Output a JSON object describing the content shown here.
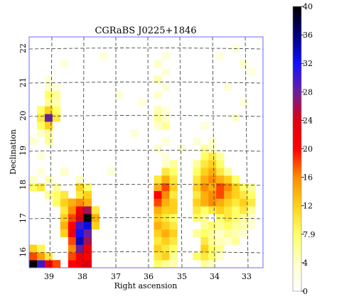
{
  "chart_data": {
    "type": "heatmap",
    "title": "CGRaBS J0225+1846",
    "xlabel": "Right ascension",
    "ylabel": "Declination",
    "x_ticks": [
      "39",
      "38",
      "37",
      "36",
      "35",
      "34",
      "33"
    ],
    "y_ticks": [
      "16",
      "17",
      "18",
      "19",
      "20",
      "21",
      "22"
    ],
    "x_axis_reversed": true,
    "grid": true,
    "grid_style": "dashed",
    "colorbar": {
      "position": "right",
      "ticks": [
        "40",
        "36",
        "32",
        "28",
        "24",
        "20",
        "16",
        "12",
        "7.9",
        "4",
        "0"
      ],
      "range": [
        0,
        40
      ],
      "scale": "nonlinear (white → yellow → orange → red → blue → black)"
    },
    "grid_size": [
      30,
      30
    ],
    "cell_values": [
      {
        "col": 0,
        "row": 0,
        "v": 40
      },
      {
        "col": 1,
        "row": 0,
        "v": 30
      },
      {
        "col": 2,
        "row": 0,
        "v": 22
      },
      {
        "col": 3,
        "row": 0,
        "v": 18
      },
      {
        "col": 0,
        "row": 1,
        "v": 18
      },
      {
        "col": 1,
        "row": 1,
        "v": 15
      },
      {
        "col": 2,
        "row": 1,
        "v": 10
      },
      {
        "col": 0,
        "row": 2,
        "v": 12
      },
      {
        "col": 1,
        "row": 2,
        "v": 9
      },
      {
        "col": 5,
        "row": 0,
        "v": 20
      },
      {
        "col": 6,
        "row": 0,
        "v": 22
      },
      {
        "col": 7,
        "row": 0,
        "v": 24
      },
      {
        "col": 5,
        "row": 1,
        "v": 18
      },
      {
        "col": 6,
        "row": 1,
        "v": 22
      },
      {
        "col": 7,
        "row": 1,
        "v": 20
      },
      {
        "col": 5,
        "row": 2,
        "v": 16
      },
      {
        "col": 6,
        "row": 2,
        "v": 28
      },
      {
        "col": 7,
        "row": 2,
        "v": 22
      },
      {
        "col": 5,
        "row": 3,
        "v": 18
      },
      {
        "col": 6,
        "row": 3,
        "v": 34
      },
      {
        "col": 7,
        "row": 3,
        "v": 26
      },
      {
        "col": 4,
        "row": 4,
        "v": 12
      },
      {
        "col": 5,
        "row": 4,
        "v": 22
      },
      {
        "col": 6,
        "row": 4,
        "v": 32
      },
      {
        "col": 7,
        "row": 4,
        "v": 28
      },
      {
        "col": 4,
        "row": 5,
        "v": 14
      },
      {
        "col": 5,
        "row": 5,
        "v": 20
      },
      {
        "col": 6,
        "row": 5,
        "v": 30
      },
      {
        "col": 7,
        "row": 5,
        "v": 33
      },
      {
        "col": 8,
        "row": 5,
        "v": 12
      },
      {
        "col": 4,
        "row": 6,
        "v": 12
      },
      {
        "col": 5,
        "row": 6,
        "v": 18
      },
      {
        "col": 6,
        "row": 6,
        "v": 24
      },
      {
        "col": 7,
        "row": 6,
        "v": 40
      },
      {
        "col": 8,
        "row": 6,
        "v": 14
      },
      {
        "col": 4,
        "row": 7,
        "v": 10
      },
      {
        "col": 5,
        "row": 7,
        "v": 16
      },
      {
        "col": 6,
        "row": 7,
        "v": 22
      },
      {
        "col": 7,
        "row": 7,
        "v": 26
      },
      {
        "col": 8,
        "row": 7,
        "v": 10
      },
      {
        "col": 3,
        "row": 8,
        "v": 8
      },
      {
        "col": 4,
        "row": 8,
        "v": 12
      },
      {
        "col": 5,
        "row": 8,
        "v": 14
      },
      {
        "col": 6,
        "row": 8,
        "v": 16
      },
      {
        "col": 7,
        "row": 8,
        "v": 14
      },
      {
        "col": 2,
        "row": 9,
        "v": 6
      },
      {
        "col": 3,
        "row": 9,
        "v": 8
      },
      {
        "col": 4,
        "row": 9,
        "v": 10
      },
      {
        "col": 6,
        "row": 9,
        "v": 10
      },
      {
        "col": 7,
        "row": 9,
        "v": 12
      },
      {
        "col": 0,
        "row": 10,
        "v": 8
      },
      {
        "col": 1,
        "row": 10,
        "v": 10
      },
      {
        "col": 3,
        "row": 10,
        "v": 6
      },
      {
        "col": 6,
        "row": 10,
        "v": 12
      },
      {
        "col": 7,
        "row": 10,
        "v": 8
      },
      {
        "col": 0,
        "row": 11,
        "v": 4
      },
      {
        "col": 2,
        "row": 11,
        "v": 5
      },
      {
        "col": 6,
        "row": 11,
        "v": 4
      },
      {
        "col": 1,
        "row": 12,
        "v": 3
      },
      {
        "col": 4,
        "row": 12,
        "v": 4
      },
      {
        "col": 1,
        "row": 14,
        "v": 3
      },
      {
        "col": 0,
        "row": 16,
        "v": 4
      },
      {
        "col": 2,
        "row": 16,
        "v": 6
      },
      {
        "col": 1,
        "row": 17,
        "v": 4
      },
      {
        "col": 2,
        "row": 17,
        "v": 6
      },
      {
        "col": 1,
        "row": 18,
        "v": 8
      },
      {
        "col": 2,
        "row": 18,
        "v": 12
      },
      {
        "col": 1,
        "row": 19,
        "v": 10
      },
      {
        "col": 2,
        "row": 19,
        "v": 28
      },
      {
        "col": 3,
        "row": 19,
        "v": 10
      },
      {
        "col": 1,
        "row": 20,
        "v": 8
      },
      {
        "col": 2,
        "row": 20,
        "v": 12
      },
      {
        "col": 3,
        "row": 20,
        "v": 8
      },
      {
        "col": 2,
        "row": 21,
        "v": 6
      },
      {
        "col": 3,
        "row": 21,
        "v": 5
      },
      {
        "col": 2,
        "row": 22,
        "v": 8
      },
      {
        "col": 3,
        "row": 22,
        "v": 6
      },
      {
        "col": 2,
        "row": 23,
        "v": 4
      },
      {
        "col": 3,
        "row": 23,
        "v": 3
      },
      {
        "col": 2,
        "row": 24,
        "v": 3
      },
      {
        "col": 4,
        "row": 26,
        "v": 3
      },
      {
        "col": 9,
        "row": 27,
        "v": 3
      },
      {
        "col": 11,
        "row": 22,
        "v": 3
      },
      {
        "col": 10,
        "row": 12,
        "v": 3
      },
      {
        "col": 16,
        "row": 0,
        "v": 8
      },
      {
        "col": 17,
        "row": 0,
        "v": 6
      },
      {
        "col": 18,
        "row": 0,
        "v": 5
      },
      {
        "col": 16,
        "row": 1,
        "v": 10
      },
      {
        "col": 17,
        "row": 1,
        "v": 12
      },
      {
        "col": 18,
        "row": 1,
        "v": 6
      },
      {
        "col": 16,
        "row": 2,
        "v": 12
      },
      {
        "col": 17,
        "row": 2,
        "v": 10
      },
      {
        "col": 18,
        "row": 2,
        "v": 8
      },
      {
        "col": 16,
        "row": 3,
        "v": 10
      },
      {
        "col": 17,
        "row": 3,
        "v": 12
      },
      {
        "col": 18,
        "row": 3,
        "v": 10
      },
      {
        "col": 16,
        "row": 4,
        "v": 12
      },
      {
        "col": 17,
        "row": 4,
        "v": 14
      },
      {
        "col": 18,
        "row": 4,
        "v": 12
      },
      {
        "col": 16,
        "row": 5,
        "v": 14
      },
      {
        "col": 17,
        "row": 5,
        "v": 12
      },
      {
        "col": 18,
        "row": 5,
        "v": 10
      },
      {
        "col": 16,
        "row": 6,
        "v": 12
      },
      {
        "col": 17,
        "row": 6,
        "v": 10
      },
      {
        "col": 18,
        "row": 6,
        "v": 8
      },
      {
        "col": 16,
        "row": 7,
        "v": 14
      },
      {
        "col": 17,
        "row": 7,
        "v": 12
      },
      {
        "col": 18,
        "row": 7,
        "v": 12
      },
      {
        "col": 16,
        "row": 8,
        "v": 18
      },
      {
        "col": 17,
        "row": 8,
        "v": 14
      },
      {
        "col": 18,
        "row": 8,
        "v": 12
      },
      {
        "col": 16,
        "row": 9,
        "v": 20
      },
      {
        "col": 17,
        "row": 9,
        "v": 16
      },
      {
        "col": 18,
        "row": 9,
        "v": 10
      },
      {
        "col": 16,
        "row": 10,
        "v": 14
      },
      {
        "col": 17,
        "row": 10,
        "v": 18
      },
      {
        "col": 18,
        "row": 10,
        "v": 12
      },
      {
        "col": 16,
        "row": 11,
        "v": 10
      },
      {
        "col": 17,
        "row": 11,
        "v": 14
      },
      {
        "col": 18,
        "row": 11,
        "v": 10
      },
      {
        "col": 17,
        "row": 12,
        "v": 10
      },
      {
        "col": 18,
        "row": 12,
        "v": 8
      },
      {
        "col": 17,
        "row": 13,
        "v": 4
      },
      {
        "col": 18,
        "row": 13,
        "v": 6
      },
      {
        "col": 17,
        "row": 14,
        "v": 3
      },
      {
        "col": 16,
        "row": 15,
        "v": 4
      },
      {
        "col": 19,
        "row": 15,
        "v": 3
      },
      {
        "col": 17,
        "row": 16,
        "v": 3
      },
      {
        "col": 16,
        "row": 18,
        "v": 4
      },
      {
        "col": 17,
        "row": 18,
        "v": 6
      },
      {
        "col": 16,
        "row": 19,
        "v": 6
      },
      {
        "col": 17,
        "row": 19,
        "v": 4
      },
      {
        "col": 16,
        "row": 20,
        "v": 5
      },
      {
        "col": 17,
        "row": 20,
        "v": 3
      },
      {
        "col": 16,
        "row": 22,
        "v": 4
      },
      {
        "col": 17,
        "row": 23,
        "v": 3
      },
      {
        "col": 16,
        "row": 24,
        "v": 5
      },
      {
        "col": 17,
        "row": 25,
        "v": 3
      },
      {
        "col": 16,
        "row": 26,
        "v": 4
      },
      {
        "col": 17,
        "row": 27,
        "v": 3
      },
      {
        "col": 14,
        "row": 21,
        "v": 3
      },
      {
        "col": 13,
        "row": 17,
        "v": 3
      },
      {
        "col": 22,
        "row": 0,
        "v": 6
      },
      {
        "col": 23,
        "row": 0,
        "v": 4
      },
      {
        "col": 21,
        "row": 1,
        "v": 8
      },
      {
        "col": 22,
        "row": 1,
        "v": 10
      },
      {
        "col": 23,
        "row": 1,
        "v": 8
      },
      {
        "col": 24,
        "row": 1,
        "v": 4
      },
      {
        "col": 22,
        "row": 2,
        "v": 12
      },
      {
        "col": 23,
        "row": 2,
        "v": 8
      },
      {
        "col": 24,
        "row": 2,
        "v": 6
      },
      {
        "col": 22,
        "row": 3,
        "v": 10
      },
      {
        "col": 23,
        "row": 3,
        "v": 6
      },
      {
        "col": 24,
        "row": 3,
        "v": 5
      },
      {
        "col": 25,
        "row": 3,
        "v": 4
      },
      {
        "col": 26,
        "row": 3,
        "v": 6
      },
      {
        "col": 21,
        "row": 4,
        "v": 6
      },
      {
        "col": 22,
        "row": 4,
        "v": 8
      },
      {
        "col": 23,
        "row": 4,
        "v": 6
      },
      {
        "col": 24,
        "row": 4,
        "v": 4
      },
      {
        "col": 25,
        "row": 4,
        "v": 6
      },
      {
        "col": 26,
        "row": 4,
        "v": 5
      },
      {
        "col": 27,
        "row": 4,
        "v": 4
      },
      {
        "col": 22,
        "row": 5,
        "v": 6
      },
      {
        "col": 23,
        "row": 5,
        "v": 8
      },
      {
        "col": 24,
        "row": 5,
        "v": 6
      },
      {
        "col": 25,
        "row": 5,
        "v": 8
      },
      {
        "col": 26,
        "row": 5,
        "v": 6
      },
      {
        "col": 27,
        "row": 5,
        "v": 5
      },
      {
        "col": 28,
        "row": 5,
        "v": 3
      },
      {
        "col": 21,
        "row": 6,
        "v": 8
      },
      {
        "col": 22,
        "row": 6,
        "v": 6
      },
      {
        "col": 24,
        "row": 6,
        "v": 8
      },
      {
        "col": 25,
        "row": 6,
        "v": 10
      },
      {
        "col": 26,
        "row": 6,
        "v": 8
      },
      {
        "col": 27,
        "row": 6,
        "v": 6
      },
      {
        "col": 28,
        "row": 6,
        "v": 4
      },
      {
        "col": 21,
        "row": 7,
        "v": 10
      },
      {
        "col": 22,
        "row": 7,
        "v": 8
      },
      {
        "col": 23,
        "row": 7,
        "v": 10
      },
      {
        "col": 24,
        "row": 7,
        "v": 12
      },
      {
        "col": 25,
        "row": 7,
        "v": 10
      },
      {
        "col": 26,
        "row": 7,
        "v": 8
      },
      {
        "col": 27,
        "row": 7,
        "v": 10
      },
      {
        "col": 28,
        "row": 7,
        "v": 6
      },
      {
        "col": 21,
        "row": 8,
        "v": 12
      },
      {
        "col": 22,
        "row": 8,
        "v": 14
      },
      {
        "col": 23,
        "row": 8,
        "v": 16
      },
      {
        "col": 24,
        "row": 8,
        "v": 14
      },
      {
        "col": 25,
        "row": 8,
        "v": 12
      },
      {
        "col": 26,
        "row": 8,
        "v": 10
      },
      {
        "col": 27,
        "row": 8,
        "v": 12
      },
      {
        "col": 28,
        "row": 8,
        "v": 10
      },
      {
        "col": 21,
        "row": 9,
        "v": 10
      },
      {
        "col": 22,
        "row": 9,
        "v": 14
      },
      {
        "col": 23,
        "row": 9,
        "v": 16
      },
      {
        "col": 24,
        "row": 9,
        "v": 18
      },
      {
        "col": 25,
        "row": 9,
        "v": 14
      },
      {
        "col": 26,
        "row": 9,
        "v": 12
      },
      {
        "col": 27,
        "row": 9,
        "v": 10
      },
      {
        "col": 28,
        "row": 9,
        "v": 8
      },
      {
        "col": 21,
        "row": 10,
        "v": 12
      },
      {
        "col": 22,
        "row": 10,
        "v": 16
      },
      {
        "col": 23,
        "row": 10,
        "v": 14
      },
      {
        "col": 24,
        "row": 10,
        "v": 18
      },
      {
        "col": 25,
        "row": 10,
        "v": 16
      },
      {
        "col": 26,
        "row": 10,
        "v": 12
      },
      {
        "col": 27,
        "row": 10,
        "v": 8
      },
      {
        "col": 28,
        "row": 10,
        "v": 6
      },
      {
        "col": 21,
        "row": 11,
        "v": 10
      },
      {
        "col": 22,
        "row": 11,
        "v": 14
      },
      {
        "col": 23,
        "row": 11,
        "v": 16
      },
      {
        "col": 24,
        "row": 11,
        "v": 14
      },
      {
        "col": 25,
        "row": 11,
        "v": 12
      },
      {
        "col": 26,
        "row": 11,
        "v": 8
      },
      {
        "col": 21,
        "row": 12,
        "v": 8
      },
      {
        "col": 22,
        "row": 12,
        "v": 12
      },
      {
        "col": 23,
        "row": 12,
        "v": 14
      },
      {
        "col": 24,
        "row": 12,
        "v": 10
      },
      {
        "col": 25,
        "row": 12,
        "v": 6
      },
      {
        "col": 21,
        "row": 13,
        "v": 6
      },
      {
        "col": 22,
        "row": 13,
        "v": 10
      },
      {
        "col": 23,
        "row": 13,
        "v": 12
      },
      {
        "col": 24,
        "row": 13,
        "v": 8
      },
      {
        "col": 22,
        "row": 14,
        "v": 8
      },
      {
        "col": 23,
        "row": 14,
        "v": 10
      },
      {
        "col": 24,
        "row": 14,
        "v": 6
      },
      {
        "col": 22,
        "row": 15,
        "v": 6
      },
      {
        "col": 23,
        "row": 15,
        "v": 4
      },
      {
        "col": 21,
        "row": 16,
        "v": 3
      },
      {
        "col": 23,
        "row": 16,
        "v": 4
      },
      {
        "col": 22,
        "row": 18,
        "v": 3
      },
      {
        "col": 26,
        "row": 19,
        "v": 4
      },
      {
        "col": 27,
        "row": 21,
        "v": 3
      },
      {
        "col": 25,
        "row": 23,
        "v": 3
      },
      {
        "col": 28,
        "row": 25,
        "v": 3
      },
      {
        "col": 27,
        "row": 26,
        "v": 4
      },
      {
        "col": 26,
        "row": 28,
        "v": 3
      },
      {
        "col": 24,
        "row": 27,
        "v": 3
      }
    ]
  }
}
